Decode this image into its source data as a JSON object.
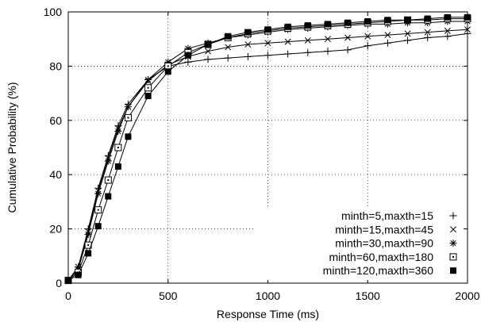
{
  "chart_data": {
    "type": "line",
    "xlabel": "Response Time (ms)",
    "ylabel": "Cumulative Probability (%)",
    "xlim": [
      0,
      2000
    ],
    "ylim": [
      0,
      100
    ],
    "x_ticks": [
      0,
      500,
      1000,
      1500,
      2000
    ],
    "y_ticks": [
      0,
      20,
      40,
      60,
      80,
      100
    ],
    "grid": "dotted",
    "legend_position": "bottom-right",
    "series": [
      {
        "name": "minth=5,maxth=15",
        "marker": "plus",
        "x": [
          0,
          50,
          100,
          150,
          200,
          250,
          300,
          400,
          500,
          600,
          700,
          800,
          900,
          1000,
          1100,
          1200,
          1300,
          1400,
          1500,
          1600,
          1700,
          1800,
          1900,
          2000
        ],
        "y": [
          1,
          6,
          20,
          35,
          47,
          58,
          66,
          75,
          80,
          81.5,
          82.5,
          83,
          83.5,
          84,
          84.5,
          85,
          85.5,
          86,
          87.5,
          88.5,
          89.5,
          90.5,
          91,
          92
        ]
      },
      {
        "name": "minth=15,maxth=45",
        "marker": "x",
        "x": [
          0,
          50,
          100,
          150,
          200,
          250,
          300,
          400,
          500,
          600,
          700,
          800,
          900,
          1000,
          1100,
          1200,
          1300,
          1400,
          1500,
          1600,
          1700,
          1800,
          1900,
          2000
        ],
        "y": [
          1,
          6,
          19,
          34,
          46,
          57,
          65,
          74.5,
          80.5,
          83.5,
          85.5,
          87,
          88,
          88.5,
          89,
          89.5,
          90,
          90.5,
          91,
          91.5,
          92,
          92.5,
          93,
          93.5
        ]
      },
      {
        "name": "minth=30,maxth=90",
        "marker": "star",
        "x": [
          0,
          50,
          100,
          150,
          200,
          250,
          300,
          400,
          500,
          600,
          700,
          800,
          900,
          1000,
          1100,
          1200,
          1300,
          1400,
          1500,
          1600,
          1700,
          1800,
          1900,
          2000
        ],
        "y": [
          1,
          5,
          18,
          33,
          45,
          56,
          65,
          75,
          81.5,
          86.5,
          88.5,
          90.5,
          91.5,
          92.5,
          93.5,
          94,
          94.5,
          95,
          95.5,
          95.5,
          96,
          96,
          96.5,
          96.5
        ]
      },
      {
        "name": "minth=60,maxth=180",
        "marker": "square-dot",
        "x": [
          0,
          50,
          100,
          150,
          200,
          250,
          300,
          400,
          500,
          600,
          700,
          800,
          900,
          1000,
          1100,
          1200,
          1300,
          1400,
          1500,
          1600,
          1700,
          1800,
          1900,
          2000
        ],
        "y": [
          1,
          4,
          14,
          27,
          38,
          50,
          61,
          72,
          80,
          85,
          88,
          90.5,
          92,
          93,
          94,
          94.5,
          95,
          95.5,
          96,
          96.5,
          97,
          97,
          97.5,
          97.5
        ]
      },
      {
        "name": "minth=120,maxth=360",
        "marker": "filled-square",
        "x": [
          0,
          50,
          100,
          150,
          200,
          250,
          300,
          400,
          500,
          600,
          700,
          800,
          900,
          1000,
          1100,
          1200,
          1300,
          1400,
          1500,
          1600,
          1700,
          1800,
          1900,
          2000
        ],
        "y": [
          1,
          3,
          11,
          21,
          32,
          43,
          54,
          69,
          78,
          84,
          88,
          91,
          92.5,
          93.5,
          94.5,
          95,
          95.5,
          96,
          96.5,
          97,
          97,
          97.5,
          98,
          98
        ]
      }
    ]
  }
}
